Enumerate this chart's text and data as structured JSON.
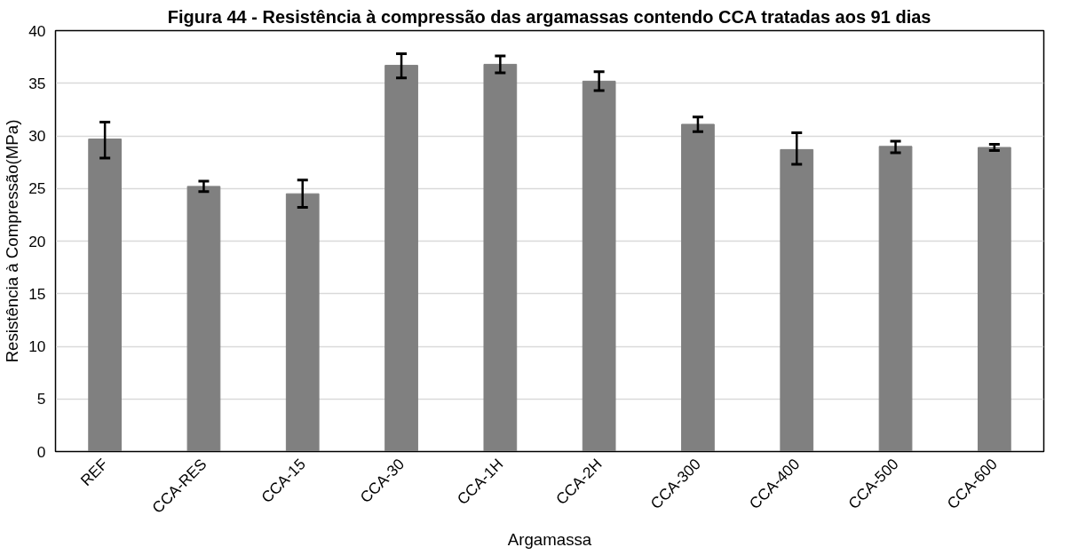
{
  "chart_data": {
    "type": "bar",
    "title": "Figura 44 - Resistência à compressão das argamassas contendo CCA tratadas aos 91 dias",
    "xlabel": "Argamassa",
    "ylabel": "Resistência à Compressão(MPa)",
    "categories": [
      "REF",
      "CCA-RES",
      "CCA-15",
      "CCA-30",
      "CCA-1H",
      "CCA-2H",
      "CCA-300",
      "CCA-400",
      "CCA-500",
      "CCA-600"
    ],
    "values": [
      29.7,
      25.2,
      24.5,
      36.7,
      36.8,
      35.2,
      31.1,
      28.7,
      29.0,
      28.9
    ],
    "errors": [
      [
        27.9,
        31.3
      ],
      [
        24.7,
        25.7
      ],
      [
        23.2,
        25.8
      ],
      [
        35.5,
        37.8
      ],
      [
        36.0,
        37.6
      ],
      [
        34.3,
        36.1
      ],
      [
        30.4,
        31.8
      ],
      [
        27.3,
        30.3
      ],
      [
        28.4,
        29.5
      ],
      [
        28.6,
        29.2
      ]
    ],
    "color": "#808080",
    "ylim": [
      0,
      40
    ],
    "yticks": [
      0,
      5,
      10,
      15,
      20,
      25,
      30,
      35,
      40
    ],
    "grid": "y"
  }
}
